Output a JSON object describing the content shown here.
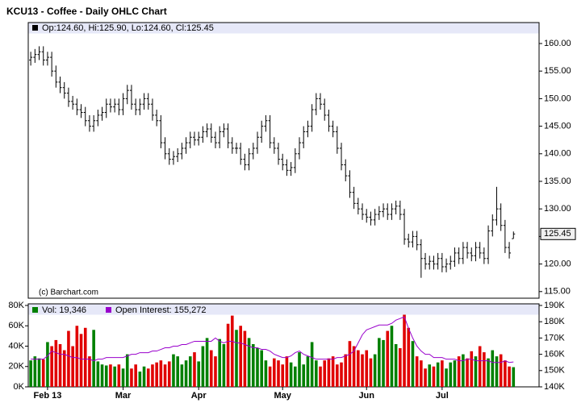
{
  "chart_data": [
    {
      "type": "ohlc",
      "title": "KCU13 - Coffee - Daily OHLC Chart",
      "info": "Op:124.60, Hi:125.90, Lo:124.60, Cl:125.45",
      "credit": "(c) Barchart.com",
      "color": "#000000",
      "xlim": [
        -0.6,
        121.1
      ],
      "open": [
        157,
        157.5,
        158,
        158.5,
        157,
        157.5,
        155,
        153,
        152,
        151,
        149.5,
        149,
        148,
        147.5,
        146,
        145,
        146,
        147,
        147.5,
        149,
        148.5,
        149,
        148,
        150,
        151.5,
        149,
        148,
        149,
        150,
        149,
        147,
        146,
        142,
        140,
        139,
        139.5,
        140,
        141,
        142,
        143,
        142.5,
        143,
        144,
        144.5,
        143,
        142,
        144,
        144.5,
        142,
        141,
        141,
        139,
        138,
        140,
        141,
        143,
        145,
        146,
        142,
        141,
        139,
        138,
        137,
        137.5,
        140,
        142,
        144,
        145,
        148,
        150,
        149,
        147,
        145,
        144,
        141,
        138,
        136,
        133,
        131,
        130,
        129,
        128.5,
        128,
        129,
        129.5,
        130,
        129,
        130,
        130.5,
        129,
        124.5,
        124,
        125,
        123.5,
        121,
        120,
        120.5,
        120,
        121,
        119.5,
        120,
        120.5,
        122,
        121,
        123,
        122,
        121.5,
        123,
        122,
        121,
        126,
        128,
        130,
        127,
        123,
        124.6
      ],
      "high": [
        158.5,
        159,
        159.5,
        159.5,
        158.5,
        158.5,
        156,
        154,
        153,
        152,
        150.5,
        150,
        149,
        148.5,
        147,
        147,
        148,
        148.5,
        150,
        150,
        150,
        150,
        151,
        152.5,
        152.5,
        150,
        150,
        151,
        151,
        150,
        148,
        147,
        143,
        141,
        140.5,
        141,
        142,
        143,
        144,
        144,
        144,
        145,
        145.5,
        145.5,
        144,
        145,
        145.5,
        145.5,
        143,
        142,
        142,
        140,
        141,
        142,
        144,
        146,
        147,
        147,
        143,
        142,
        140,
        139,
        138.5,
        141,
        143,
        145,
        146,
        149,
        151,
        151,
        150,
        148,
        146,
        145,
        142,
        139,
        137,
        134,
        132,
        131,
        130,
        129.5,
        130,
        130.5,
        131,
        131,
        131,
        131.5,
        131.5,
        130,
        125.5,
        126,
        126,
        124.5,
        122,
        121.5,
        121.5,
        122,
        122,
        121,
        121.5,
        123,
        123,
        124,
        124,
        123,
        124,
        124,
        123,
        127,
        129,
        134,
        131,
        128,
        124,
        125.9
      ],
      "low": [
        156,
        156.5,
        157,
        156,
        156,
        154,
        152,
        151,
        150,
        148.5,
        148,
        147,
        146.5,
        145,
        144,
        144,
        145,
        146,
        146.5,
        147.5,
        147.5,
        147,
        147,
        149,
        148,
        147,
        147,
        148,
        148,
        146,
        145,
        141,
        139,
        138,
        138,
        138.5,
        139,
        140,
        141,
        141.5,
        141.5,
        142,
        143,
        142,
        141,
        141,
        143,
        141,
        140,
        140,
        138,
        137,
        137,
        139,
        140,
        142,
        144,
        141,
        140,
        138,
        137,
        136,
        136,
        136.5,
        139,
        141,
        143,
        144,
        147,
        148,
        146,
        144,
        143,
        140,
        137,
        135,
        132,
        130,
        129,
        128,
        127.5,
        127,
        127,
        128,
        128.5,
        128,
        128,
        129,
        128,
        123.5,
        123,
        123,
        122.5,
        117.5,
        119,
        119,
        119,
        119,
        118.5,
        118.5,
        119,
        119.5,
        120,
        120,
        121,
        120.5,
        120.5,
        121,
        120,
        120,
        125,
        127,
        126,
        122,
        121,
        124.6
      ],
      "close": [
        157.5,
        158,
        158.5,
        157,
        157.5,
        155,
        153,
        152,
        151,
        149.5,
        149,
        148,
        147.5,
        146,
        145,
        146,
        147,
        147.5,
        149,
        148.5,
        149,
        148,
        150,
        151.5,
        149,
        148,
        149,
        150,
        149,
        147,
        146,
        142,
        140,
        139,
        139.5,
        140,
        141,
        142,
        143,
        142.5,
        143,
        144,
        144.5,
        143,
        142,
        144,
        144.5,
        142,
        141,
        141,
        139,
        138,
        140,
        141,
        143,
        145,
        146,
        142,
        141,
        139,
        138,
        137,
        137.5,
        140,
        142,
        144,
        145,
        148,
        150,
        149,
        147,
        145,
        144,
        141,
        138,
        136,
        133,
        131,
        130,
        129,
        128.5,
        128,
        129,
        129.5,
        130,
        129,
        130,
        130.5,
        129,
        124.5,
        124,
        125,
        123.5,
        121,
        120,
        120.5,
        120,
        121,
        119.5,
        120,
        120.5,
        122,
        121,
        123,
        122,
        121.5,
        123,
        122,
        121,
        126,
        128,
        130,
        127,
        123,
        122,
        125.45
      ],
      "ylim": [
        113.8,
        163.8
      ],
      "yticks": [
        {
          "value": 115,
          "label": "115.00"
        },
        {
          "value": 120,
          "label": "120.00"
        },
        {
          "value": 125,
          "label": "125.00"
        },
        {
          "value": 130,
          "label": "130.00"
        },
        {
          "value": 135,
          "label": "135.00"
        },
        {
          "value": 140,
          "label": "140.00"
        },
        {
          "value": 145,
          "label": "145.00"
        },
        {
          "value": 150,
          "label": "150.00"
        },
        {
          "value": 155,
          "label": "155.00"
        },
        {
          "value": 160,
          "label": "160.00"
        }
      ]
    },
    {
      "type": "volume",
      "xlim": [
        -0.6,
        121.1
      ],
      "xticks": [
        {
          "value": 4,
          "label": "Feb 13"
        },
        {
          "value": 22,
          "label": "Mar"
        },
        {
          "value": 40,
          "label": "Apr"
        },
        {
          "value": 60,
          "label": "May"
        },
        {
          "value": 80,
          "label": "Jun"
        },
        {
          "value": 98,
          "label": "Jul"
        }
      ],
      "series": [
        {
          "name": "Vol: 19,346",
          "color": "#008000",
          "down_color": "#e00000",
          "values": [
            26000,
            30000,
            28000,
            27000,
            44000,
            40000,
            46000,
            42000,
            36000,
            55000,
            40000,
            60000,
            52000,
            58000,
            30000,
            56000,
            25000,
            22000,
            21000,
            22000,
            20000,
            22000,
            18000,
            32000,
            18000,
            22000,
            15000,
            20000,
            18000,
            22000,
            24000,
            26000,
            22000,
            25000,
            32000,
            30000,
            22000,
            26000,
            30000,
            34000,
            25000,
            40000,
            48000,
            36000,
            30000,
            47000,
            42000,
            62000,
            70000,
            56000,
            60000,
            55000,
            48000,
            42000,
            38000,
            36000,
            26000,
            20000,
            28000,
            26000,
            22000,
            30000,
            24000,
            20000,
            34000,
            22000,
            30000,
            44000,
            26000,
            20000,
            26000,
            28000,
            30000,
            22000,
            24000,
            32000,
            45000,
            40000,
            36000,
            32000,
            36000,
            28000,
            32000,
            48000,
            46000,
            55000,
            60000,
            42000,
            38000,
            72000,
            58000,
            45000,
            30000,
            26000,
            18000,
            22000,
            20000,
            24000,
            26000,
            18000,
            24000,
            26000,
            30000,
            32000,
            28000,
            35000,
            30000,
            40000,
            34000,
            28000,
            36000,
            30000,
            32000,
            26000,
            20000,
            19346
          ]
        },
        {
          "name": "Open Interest: 155,272",
          "color": "#9900cc",
          "axis": "y2",
          "values": [
            157000,
            157000,
            157000,
            157000,
            159000,
            162000,
            161000,
            160000,
            160000,
            159000,
            158000,
            158000,
            157000,
            157000,
            157000,
            156000,
            157000,
            157000,
            158000,
            158000,
            158000,
            158000,
            158000,
            159000,
            160000,
            160000,
            161000,
            161000,
            161000,
            162000,
            162000,
            163000,
            164000,
            164000,
            165000,
            165000,
            166000,
            166000,
            167000,
            168000,
            168000,
            168000,
            168000,
            168000,
            170000,
            168000,
            167000,
            168000,
            168000,
            167000,
            167000,
            166000,
            165000,
            164000,
            164000,
            163000,
            163000,
            162000,
            160000,
            159000,
            158000,
            158000,
            159000,
            161000,
            162000,
            160000,
            159000,
            158000,
            157000,
            157000,
            157000,
            157000,
            157000,
            158000,
            158000,
            159000,
            160000,
            162000,
            167000,
            172000,
            175000,
            176000,
            177000,
            178000,
            178000,
            178000,
            179000,
            181000,
            182000,
            183000,
            176000,
            170000,
            165000,
            162000,
            160000,
            160000,
            158000,
            158000,
            158000,
            157000,
            157000,
            157000,
            156000,
            156000,
            157000,
            157000,
            156000,
            156000,
            156000,
            156000,
            155000,
            155000,
            155000,
            156000,
            155000,
            155272
          ]
        }
      ],
      "ylim": [
        0,
        80000
      ],
      "yticks": [
        {
          "value": 0,
          "label": "0K"
        },
        {
          "value": 20000,
          "label": "20K"
        },
        {
          "value": 40000,
          "label": "40K"
        },
        {
          "value": 60000,
          "label": "60K"
        },
        {
          "value": 80000,
          "label": "80K"
        }
      ],
      "y2lim": [
        140000,
        190000
      ],
      "y2ticks": [
        {
          "value": 140000,
          "label": "140K"
        },
        {
          "value": 150000,
          "label": "150K"
        },
        {
          "value": 160000,
          "label": "160K"
        },
        {
          "value": 170000,
          "label": "170K"
        },
        {
          "value": 180000,
          "label": "180K"
        },
        {
          "value": 190000,
          "label": "190K"
        }
      ]
    }
  ]
}
